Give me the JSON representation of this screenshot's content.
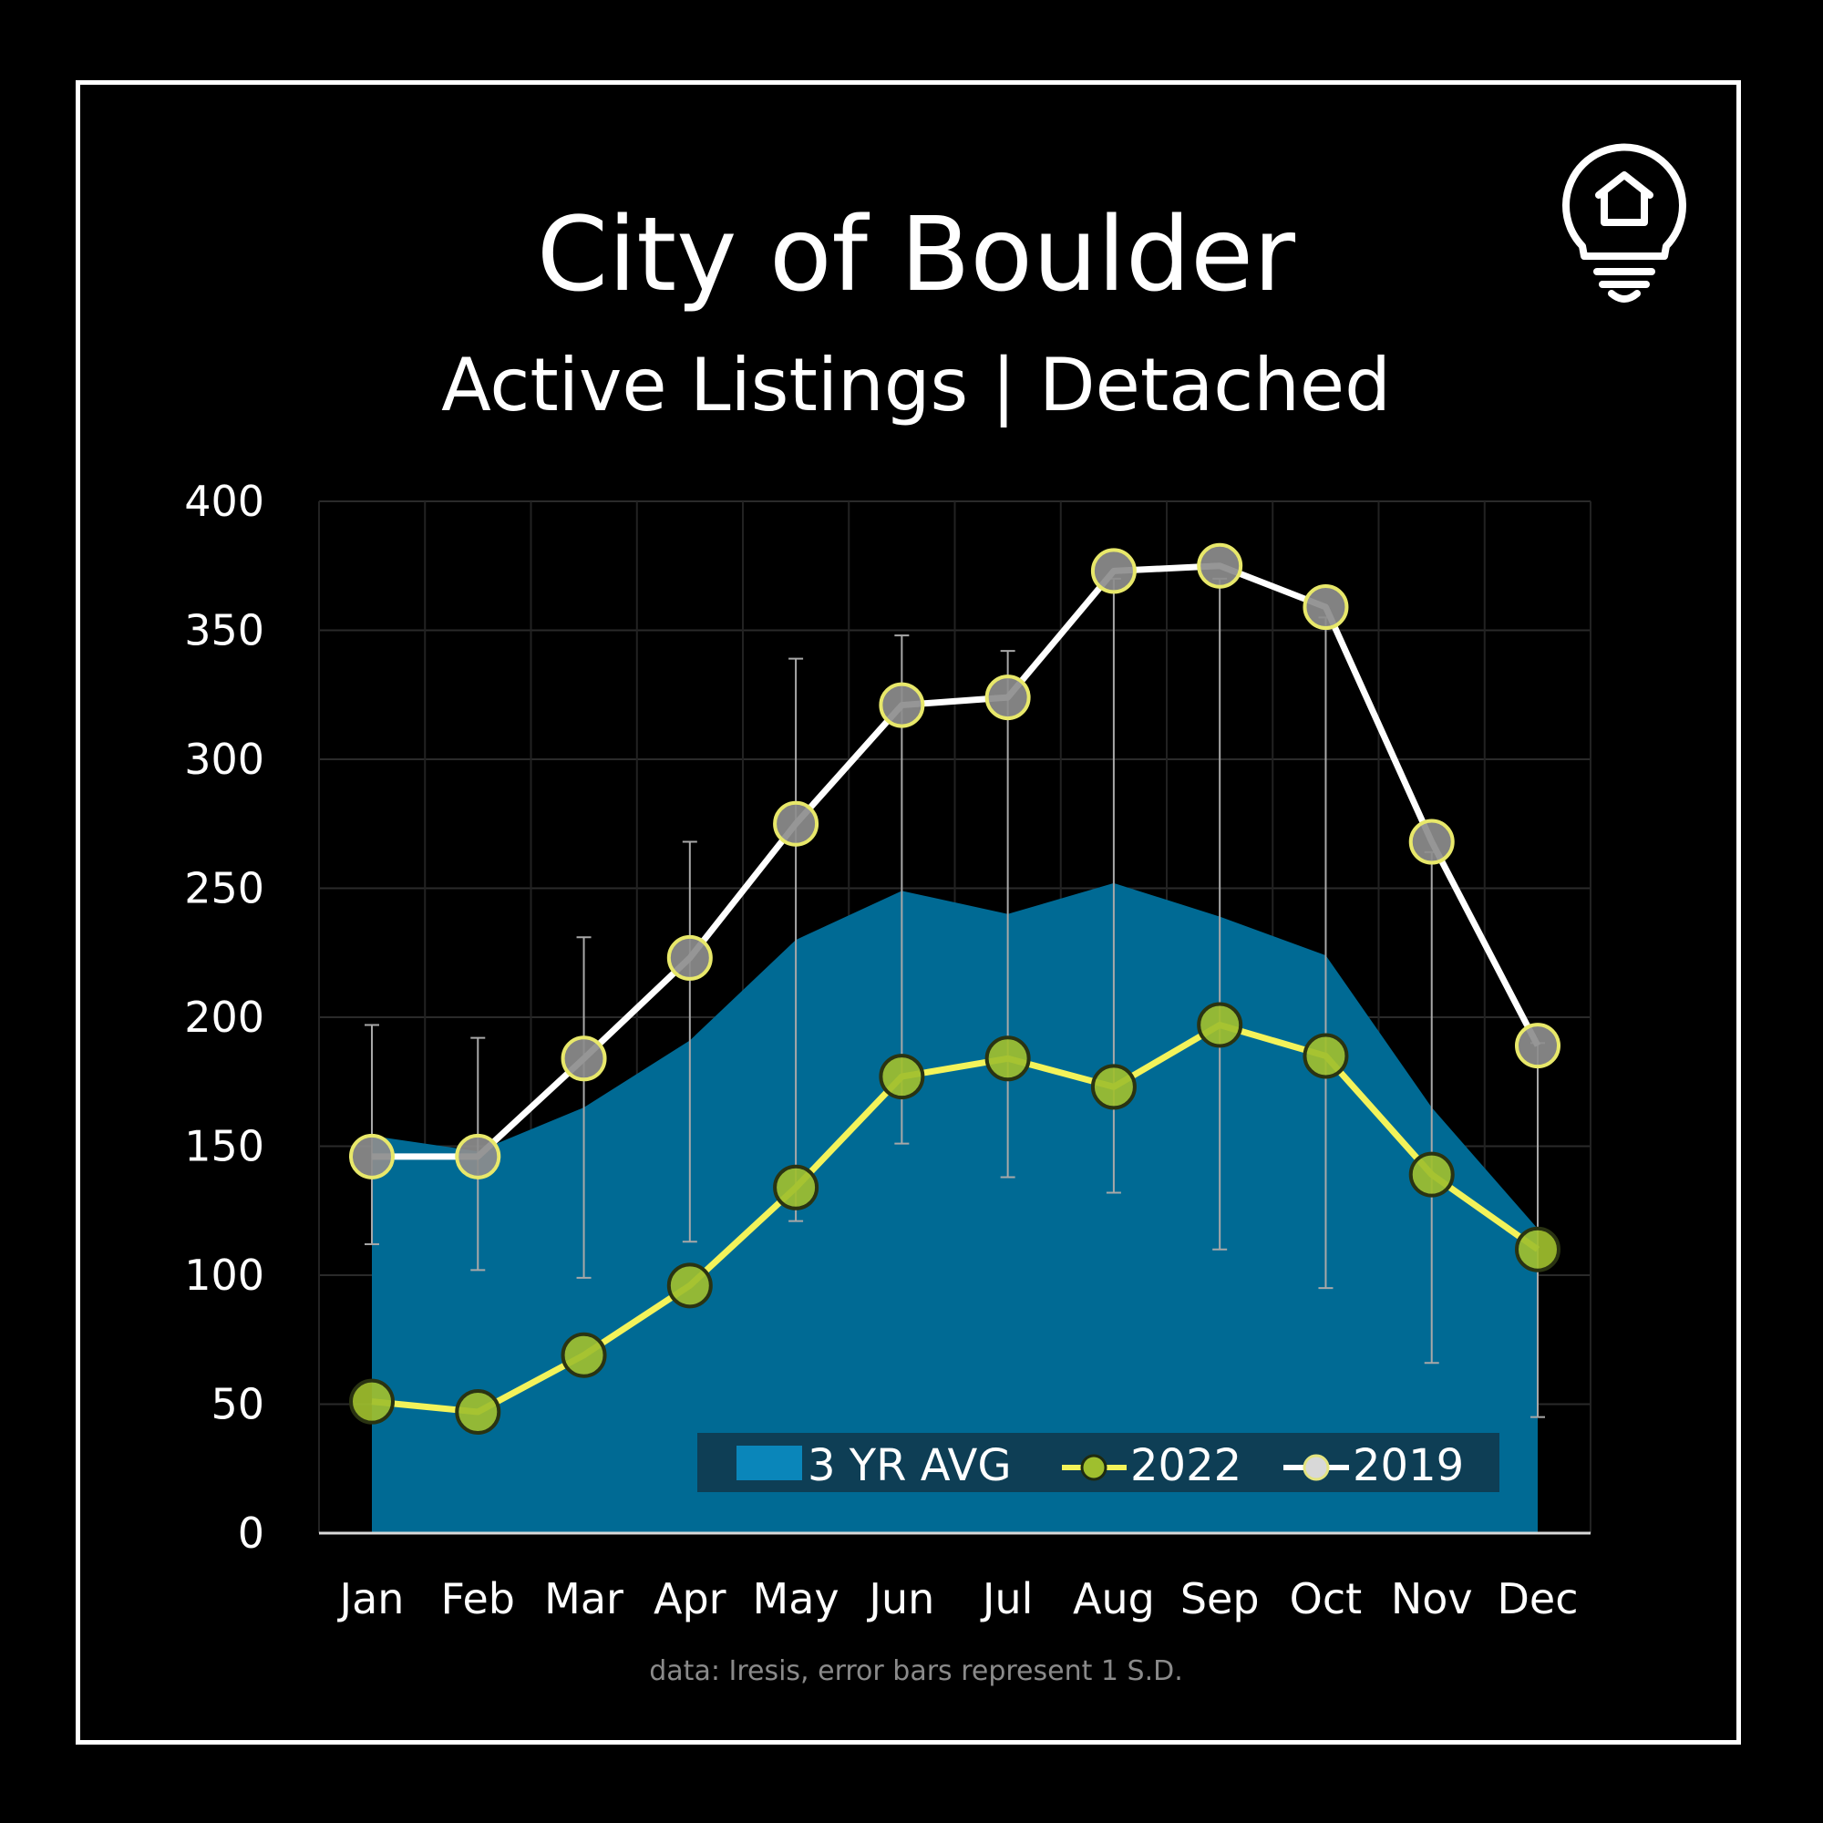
{
  "header": {
    "title": "City of Boulder",
    "subtitle": "Active Listings | Detached"
  },
  "logo": {
    "icon": "house-lightbulb-icon"
  },
  "footer": {
    "source_note": "data: Iresis,  error bars represent 1 S.D."
  },
  "colors": {
    "background": "#000000",
    "avg_fill": "#006a94",
    "series_2022_line": "#f3f35a",
    "series_2022_marker": "#9fbf2e",
    "series_2019_line": "#ffffff",
    "series_2019_marker": "#8d8d8d",
    "error_bar": "#a8a8a8"
  },
  "chart_data": {
    "type": "area",
    "title": "City of Boulder",
    "subtitle": "Active Listings | Detached",
    "xlabel": "",
    "ylabel": "",
    "ylim": [
      0,
      400
    ],
    "yticks": [
      0,
      50,
      100,
      150,
      200,
      250,
      300,
      350,
      400
    ],
    "grid": true,
    "legend_position": "bottom-right",
    "categories": [
      "Jan",
      "Feb",
      "Mar",
      "Apr",
      "May",
      "Jun",
      "Jul",
      "Aug",
      "Sep",
      "Oct",
      "Nov",
      "Dec"
    ],
    "series": [
      {
        "name": "3 YR AVG",
        "kind": "area",
        "values": [
          154,
          148,
          165,
          191,
          230,
          249,
          240,
          252,
          239,
          224,
          165,
          118
        ],
        "error_low": [
          112,
          102,
          99,
          113,
          121,
          151,
          138,
          132,
          110,
          95,
          66,
          45
        ],
        "error_high": [
          197,
          192,
          231,
          268,
          339,
          348,
          342,
          370,
          370,
          355,
          264,
          190
        ]
      },
      {
        "name": "2022",
        "kind": "line",
        "values": [
          51,
          47,
          69,
          96,
          134,
          177,
          184,
          173,
          197,
          185,
          139,
          110
        ]
      },
      {
        "name": "2019",
        "kind": "line",
        "values": [
          146,
          146,
          184,
          223,
          275,
          321,
          324,
          373,
          375,
          359,
          268,
          189
        ]
      }
    ]
  }
}
